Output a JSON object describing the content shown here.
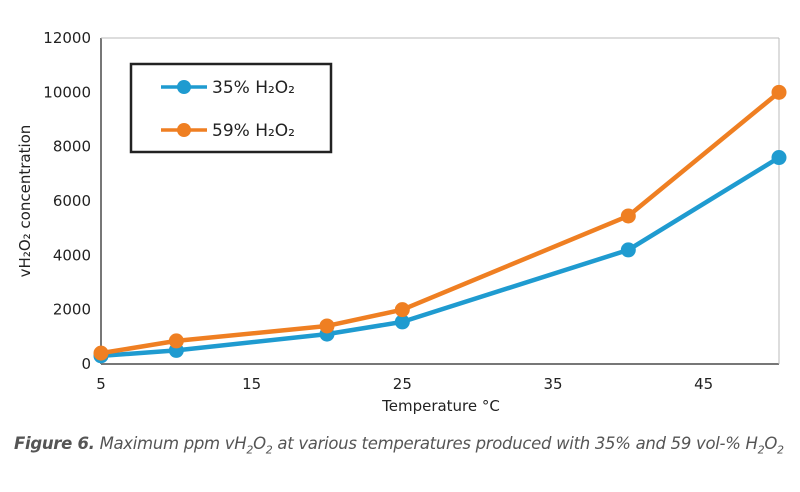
{
  "chart_data": {
    "type": "line",
    "title": "",
    "xlabel": "Temperature °C",
    "ylabel": "vH₂O₂ concentration",
    "xlim": [
      5,
      50
    ],
    "ylim": [
      0,
      12000
    ],
    "xticks": [
      5,
      15,
      25,
      35,
      45
    ],
    "yticks": [
      0,
      2000,
      4000,
      6000,
      8000,
      10000,
      12000
    ],
    "grid": false,
    "legend_position": "top-left",
    "x": [
      5,
      10,
      20,
      25,
      40,
      50
    ],
    "series": [
      {
        "name": "35% H₂O₂",
        "color": "#1f9bd0",
        "values": [
          300,
          500,
          1100,
          1550,
          4200,
          7600
        ]
      },
      {
        "name": "59% H₂O₂",
        "color": "#ef7f22",
        "values": [
          400,
          850,
          1400,
          2000,
          5450,
          10000
        ]
      }
    ]
  },
  "caption": {
    "label": "Figure 6.",
    "text_parts": [
      "Maximum ppm vH",
      "2",
      "O",
      "2",
      " at various temperatures produced with 35% and 59 vol-% H",
      "2",
      "O",
      "2"
    ]
  }
}
